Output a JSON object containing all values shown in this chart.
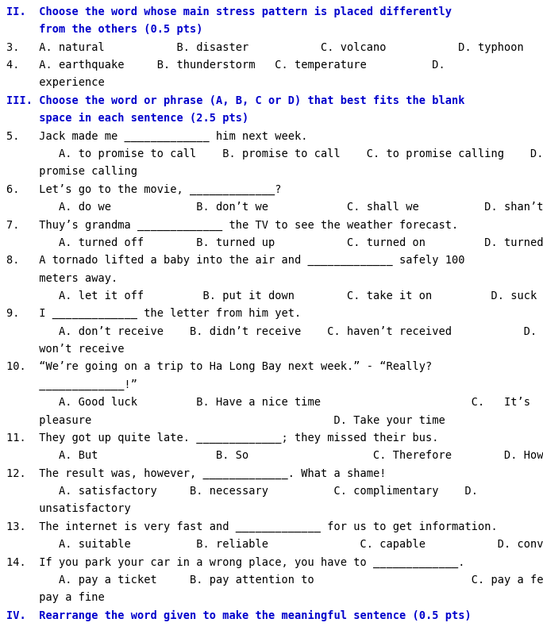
{
  "bg_color": "#ffffff",
  "blue_color": "#0000cc",
  "black_color": "#000000",
  "font_size": 9.8,
  "lines": [
    {
      "text": "II.  Choose the word whose main stress pattern is placed differently",
      "bold": true,
      "color": "blue"
    },
    {
      "text": "     from the others (0.5 pts)",
      "bold": true,
      "color": "blue"
    },
    {
      "text": "3.   A. natural           B. disaster           C. volcano           D. typhoon",
      "bold": false,
      "color": "black"
    },
    {
      "text": "4.   A. earthquake     B. thunderstorm   C. temperature          D.",
      "bold": false,
      "color": "black"
    },
    {
      "text": "     experience",
      "bold": false,
      "color": "black"
    },
    {
      "text": "III. Choose the word or phrase (A, B, C or D) that best fits the blank",
      "bold": true,
      "color": "blue"
    },
    {
      "text": "     space in each sentence (2.5 pts)",
      "bold": true,
      "color": "blue"
    },
    {
      "text": "5.   Jack made me _____________ him next week.",
      "bold": false,
      "color": "black"
    },
    {
      "text": "        A. to promise to call    B. promise to call    C. to promise calling    D.",
      "bold": false,
      "color": "black"
    },
    {
      "text": "     promise calling",
      "bold": false,
      "color": "black"
    },
    {
      "text": "6.   Let’s go to the movie, _____________?",
      "bold": false,
      "color": "black"
    },
    {
      "text": "        A. do we             B. don’t we            C. shall we          D. shan’t we",
      "bold": false,
      "color": "black"
    },
    {
      "text": "7.   Thuy’s grandma _____________ the TV to see the weather forecast.",
      "bold": false,
      "color": "black"
    },
    {
      "text": "        A. turned off        B. turned up           C. turned on         D. turned down",
      "bold": false,
      "color": "black"
    },
    {
      "text": "8.   A tornado lifted a baby into the air and _____________ safely 100",
      "bold": false,
      "color": "black"
    },
    {
      "text": "     meters away.",
      "bold": false,
      "color": "black"
    },
    {
      "text": "        A. let it off         B. put it down        C. take it on         D. suck it up",
      "bold": false,
      "color": "black"
    },
    {
      "text": "9.   I _____________ the letter from him yet.",
      "bold": false,
      "color": "black"
    },
    {
      "text": "        A. don’t receive    B. didn’t receive    C. haven’t received           D.",
      "bold": false,
      "color": "black"
    },
    {
      "text": "     won’t receive",
      "bold": false,
      "color": "black"
    },
    {
      "text": "10.  “We’re going on a trip to Ha Long Bay next week.” - “Really?",
      "bold": false,
      "color": "black"
    },
    {
      "text": "     _____________!”",
      "bold": false,
      "color": "black"
    },
    {
      "text": "        A. Good luck         B. Have a nice time                       C.   It’s   your",
      "bold": false,
      "color": "black"
    },
    {
      "text": "     pleasure                                     D. Take your time",
      "bold": false,
      "color": "black"
    },
    {
      "text": "11.  They got up quite late. _____________; they missed their bus.",
      "bold": false,
      "color": "black"
    },
    {
      "text": "        A. But                  B. So                   C. Therefore        D. However",
      "bold": false,
      "color": "black"
    },
    {
      "text": "12.  The result was, however, _____________. What a shame!",
      "bold": false,
      "color": "black"
    },
    {
      "text": "        A. satisfactory     B. necessary          C. complimentary    D.",
      "bold": false,
      "color": "black"
    },
    {
      "text": "     unsatisfactory",
      "bold": false,
      "color": "black"
    },
    {
      "text": "13.  The internet is very fast and _____________ for us to get information.",
      "bold": false,
      "color": "black"
    },
    {
      "text": "        A. suitable          B. reliable              C. capable           D. convenient",
      "bold": false,
      "color": "black"
    },
    {
      "text": "14.  If you park your car in a wrong place, you have to _____________.",
      "bold": false,
      "color": "black"
    },
    {
      "text": "        A. pay a ticket     B. pay attention to                        C. pay a fee   D.",
      "bold": false,
      "color": "black"
    },
    {
      "text": "     pay a fine",
      "bold": false,
      "color": "black"
    },
    {
      "text": "IV.  Rearrange the word given to make the meaningful sentence (0.5 pts)",
      "bold": true,
      "color": "blue"
    }
  ]
}
